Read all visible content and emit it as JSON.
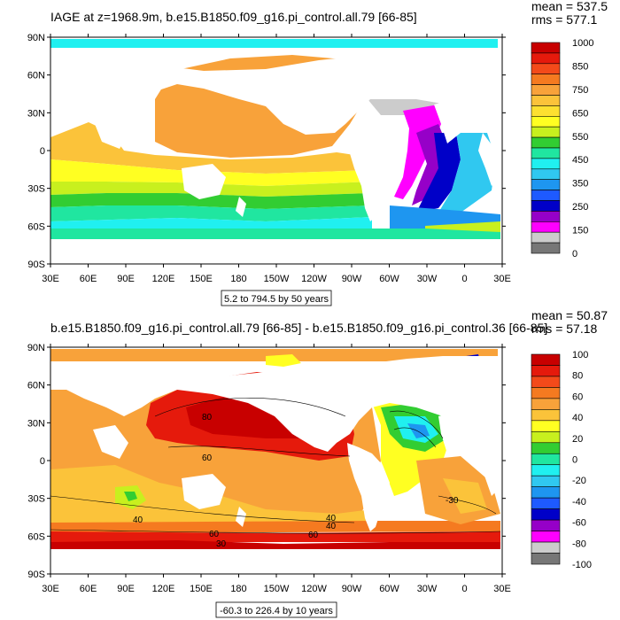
{
  "panel1": {
    "title": "IAGE at z=1968.9m, b.e15.B1850.f09_g16.pi_control.all.79 [66-85]",
    "stats_mean": "mean = 537.5",
    "stats_rms": "rms = 577.1",
    "range_label": "5.2 to 794.5 by 50 years",
    "lat_ticks": [
      "90N",
      "60N",
      "30N",
      "0",
      "30S",
      "60S",
      "90S"
    ],
    "lon_ticks": [
      "30E",
      "60E",
      "90E",
      "120E",
      "150E",
      "180",
      "150W",
      "120W",
      "90W",
      "60W",
      "30W",
      "0",
      "30E"
    ],
    "colorbar_labels": [
      "1000",
      "850",
      "750",
      "650",
      "550",
      "450",
      "350",
      "250",
      "150",
      "0"
    ],
    "colorbar_colors": [
      "#c80000",
      "#e51a0c",
      "#f34a1a",
      "#f57a20",
      "#f8a23a",
      "#fbc33a",
      "#fde030",
      "#ffff22",
      "#c8f01e",
      "#32cd32",
      "#20e6a0",
      "#20f0f0",
      "#30c8f0",
      "#1e96f0",
      "#1e5aff",
      "#0000c8",
      "#9600c8",
      "#ff00ff",
      "#cccccc",
      "#777777"
    ]
  },
  "panel2": {
    "title": "b.e15.B1850.f09_g16.pi_control.all.79 [66-85] - b.e15.B1850.f09_g16.pi_control.36 [66-85]",
    "stats_mean": "mean = 50.87",
    "stats_rms": "rms = 57.18",
    "range_label": "-60.3 to 226.4 by 10 years",
    "lat_ticks": [
      "90N",
      "60N",
      "30N",
      "0",
      "30S",
      "60S",
      "90S"
    ],
    "lon_ticks": [
      "30E",
      "60E",
      "90E",
      "120E",
      "150E",
      "180",
      "150W",
      "120W",
      "90W",
      "60W",
      "30W",
      "0",
      "30E"
    ],
    "colorbar_labels": [
      "100",
      "80",
      "60",
      "40",
      "20",
      "0",
      "-20",
      "-40",
      "-60",
      "-80",
      "-100"
    ],
    "colorbar_colors": [
      "#c80000",
      "#e51a0c",
      "#f34a1a",
      "#f57a20",
      "#f8a23a",
      "#fbc33a",
      "#ffff22",
      "#c8f01e",
      "#32cd32",
      "#20e6a0",
      "#20f0f0",
      "#30c8f0",
      "#1e96f0",
      "#1e5aff",
      "#0000c8",
      "#9600c8",
      "#ff00ff",
      "#cccccc",
      "#777777"
    ],
    "contour_labels": [
      "80",
      "60",
      "40",
      "40",
      "40",
      "60",
      "60",
      "30",
      "-30"
    ]
  }
}
